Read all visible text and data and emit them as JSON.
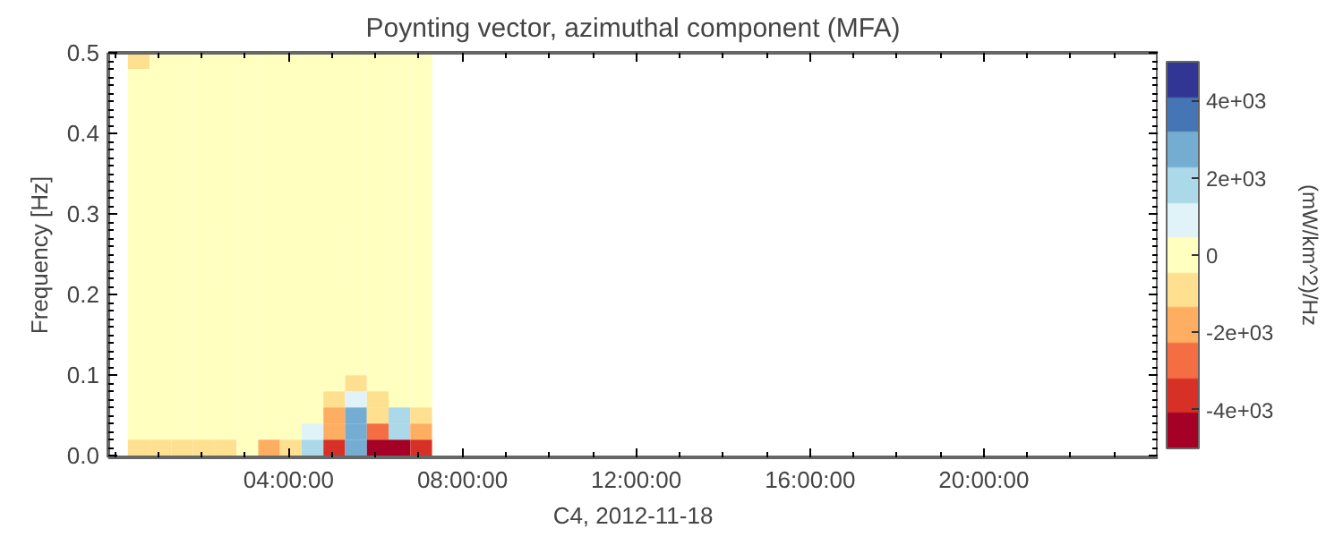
{
  "chart_data": {
    "type": "heatmap",
    "title": "Poynting vector, azimuthal component (MFA)",
    "xlabel": "C4, 2012-11-18",
    "ylabel": "Frequency [Hz]",
    "clabel": "(mW/km^2)/Hz",
    "x": [
      0.55,
      1.05,
      1.55,
      2.05,
      2.55,
      3.05,
      3.55,
      4.05,
      4.55,
      5.05,
      5.55,
      6.05,
      6.55,
      7.05
    ],
    "y": [
      0.01,
      0.03,
      0.05,
      0.07,
      0.09,
      0.11,
      0.13,
      0.15,
      0.17,
      0.19,
      0.21,
      0.23,
      0.25,
      0.27,
      0.29,
      0.31,
      0.33,
      0.35,
      0.37,
      0.39,
      0.41,
      0.43,
      0.45,
      0.47,
      0.49
    ],
    "cells": [
      [
        -800,
        -1000,
        -1000,
        -800,
        -800,
        -300,
        -1500,
        -600,
        1500,
        -4000,
        3000,
        -5000,
        -4500,
        -3500
      ],
      [
        0,
        0,
        0,
        0,
        0,
        0,
        0,
        0,
        500,
        -2000,
        2500,
        -3000,
        2000,
        -1500
      ],
      [
        0,
        0,
        0,
        0,
        0,
        0,
        0,
        0,
        0,
        -1500,
        3000,
        -1000,
        1500,
        -500
      ],
      [
        0,
        0,
        0,
        0,
        0,
        0,
        0,
        0,
        0,
        -500,
        800,
        -600,
        300,
        0
      ],
      [
        0,
        0,
        0,
        0,
        0,
        0,
        0,
        0,
        0,
        0,
        -800,
        0,
        -300,
        0
      ],
      [
        0,
        0,
        0,
        0,
        0,
        0,
        0,
        0,
        0,
        0,
        -300,
        0,
        0,
        0
      ],
      [
        0,
        0,
        0,
        0,
        0,
        0,
        0,
        0,
        0,
        0,
        0,
        0,
        0,
        0
      ],
      [
        0,
        0,
        0,
        0,
        0,
        0,
        0,
        0,
        0,
        0,
        0,
        0,
        0,
        0
      ],
      [
        0,
        0,
        0,
        0,
        0,
        0,
        0,
        0,
        0,
        0,
        0,
        0,
        0,
        0
      ],
      [
        0,
        0,
        0,
        0,
        0,
        0,
        0,
        0,
        0,
        0,
        0,
        0,
        0,
        0
      ],
      [
        0,
        0,
        0,
        0,
        0,
        0,
        0,
        0,
        0,
        0,
        0,
        0,
        0,
        0
      ],
      [
        0,
        0,
        0,
        0,
        0,
        0,
        0,
        0,
        0,
        0,
        0,
        0,
        0,
        0
      ],
      [
        0,
        0,
        0,
        0,
        0,
        0,
        0,
        0,
        0,
        0,
        0,
        0,
        0,
        0
      ],
      [
        0,
        0,
        0,
        0,
        0,
        0,
        0,
        0,
        0,
        0,
        0,
        0,
        0,
        0
      ],
      [
        0,
        0,
        0,
        0,
        0,
        0,
        0,
        0,
        0,
        0,
        0,
        0,
        0,
        0
      ],
      [
        0,
        0,
        0,
        0,
        0,
        0,
        0,
        0,
        0,
        0,
        0,
        0,
        0,
        0
      ],
      [
        0,
        0,
        0,
        0,
        0,
        0,
        0,
        0,
        0,
        0,
        0,
        0,
        0,
        0
      ],
      [
        0,
        0,
        0,
        0,
        0,
        0,
        0,
        0,
        0,
        0,
        0,
        0,
        0,
        0
      ],
      [
        0,
        0,
        0,
        0,
        0,
        0,
        0,
        0,
        0,
        0,
        0,
        0,
        0,
        0
      ],
      [
        0,
        0,
        0,
        0,
        0,
        0,
        0,
        0,
        0,
        0,
        0,
        0,
        0,
        0
      ],
      [
        0,
        0,
        0,
        0,
        0,
        0,
        0,
        0,
        0,
        0,
        0,
        0,
        0,
        0
      ],
      [
        0,
        0,
        0,
        0,
        0,
        0,
        0,
        0,
        0,
        0,
        0,
        0,
        0,
        0
      ],
      [
        0,
        0,
        0,
        0,
        0,
        0,
        0,
        0,
        0,
        0,
        0,
        0,
        0,
        0
      ],
      [
        0,
        0,
        0,
        0,
        0,
        0,
        0,
        0,
        0,
        0,
        0,
        0,
        0,
        0
      ],
      [
        -800,
        -300,
        0,
        0,
        0,
        0,
        0,
        0,
        0,
        0,
        0,
        0,
        0,
        0
      ]
    ],
    "xlim": [
      -0.15,
      24
    ],
    "xticks": [
      {
        "value": 4,
        "label": "04:00:00"
      },
      {
        "value": 8,
        "label": "08:00:00"
      },
      {
        "value": 12,
        "label": "12:00:00"
      },
      {
        "value": 16,
        "label": "16:00:00"
      },
      {
        "value": 20,
        "label": "20:00:00"
      }
    ],
    "ylim": [
      -0.002,
      0.5
    ],
    "yticks": [
      {
        "value": 0,
        "label": "0.0"
      },
      0.1,
      0.2,
      0.3,
      0.4,
      0.5
    ],
    "clim": [
      -5000,
      5000
    ],
    "cticks": [
      {
        "value": -4000,
        "label": "-4e+03"
      },
      {
        "value": -2000,
        "label": "-2e+03"
      },
      0,
      {
        "value": 2000,
        "label": "2e+03"
      },
      {
        "value": 4000,
        "label": "4e+03"
      }
    ],
    "grid": false
  }
}
